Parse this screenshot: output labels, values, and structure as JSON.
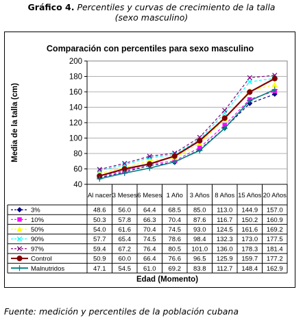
{
  "caption": {
    "label": "Gráfico 4.",
    "title": "Percentiles y curvas de crecimiento de la talla",
    "subtitle": "(sexo masculino)"
  },
  "source": "Fuente: medición y percentiles de la población cubana",
  "chart_data": {
    "type": "line",
    "title": "Comparación con percentiles para sexo masculino",
    "xlabel": "Edad (Momento)",
    "ylabel": "Media de la talla (cm)",
    "ylim": [
      40,
      200
    ],
    "yticks": [
      40,
      60,
      80,
      100,
      120,
      140,
      160,
      180,
      200
    ],
    "grid": true,
    "legend": "data-table",
    "categories": [
      "Al nacer",
      "3 Meses",
      "6 Meses",
      "1 Año",
      "3 Años",
      "8 Años",
      "15 Años",
      "20 Años"
    ],
    "series": [
      {
        "name": "3%",
        "color": "#000080",
        "style": "dashed",
        "marker": "diamond",
        "values": [
          48.6,
          56.0,
          64.4,
          68.5,
          85.0,
          113.0,
          144.9,
          157.0
        ]
      },
      {
        "name": "10%",
        "color": "#ff00ff",
        "style": "dashed",
        "marker": "square",
        "values": [
          50.3,
          57.8,
          66.3,
          70.4,
          87.6,
          116.7,
          150.2,
          160.9
        ]
      },
      {
        "name": "50%",
        "color": "#ffff00",
        "style": "dashed",
        "marker": "triangle",
        "values": [
          54.0,
          61.6,
          70.4,
          74.5,
          93.0,
          124.5,
          161.6,
          169.2
        ]
      },
      {
        "name": "90%",
        "color": "#00ffff",
        "style": "dashed",
        "marker": "x",
        "values": [
          57.7,
          65.4,
          74.5,
          78.6,
          98.4,
          132.3,
          173.0,
          177.5
        ]
      },
      {
        "name": "97%",
        "color": "#800080",
        "style": "dashed",
        "marker": "x",
        "values": [
          59.4,
          67.2,
          76.4,
          80.5,
          101.0,
          136.0,
          178.3,
          181.4
        ]
      },
      {
        "name": "Control",
        "color": "#800000",
        "style": "solid",
        "marker": "circle",
        "values": [
          50.9,
          60.0,
          66.4,
          76.6,
          96.5,
          125.9,
          159.7,
          177.2
        ]
      },
      {
        "name": "Malnutridos",
        "color": "#008080",
        "style": "solid",
        "marker": "plus",
        "values": [
          47.1,
          54.5,
          61.0,
          69.2,
          83.8,
          112.7,
          148.4,
          162.9
        ]
      }
    ]
  }
}
